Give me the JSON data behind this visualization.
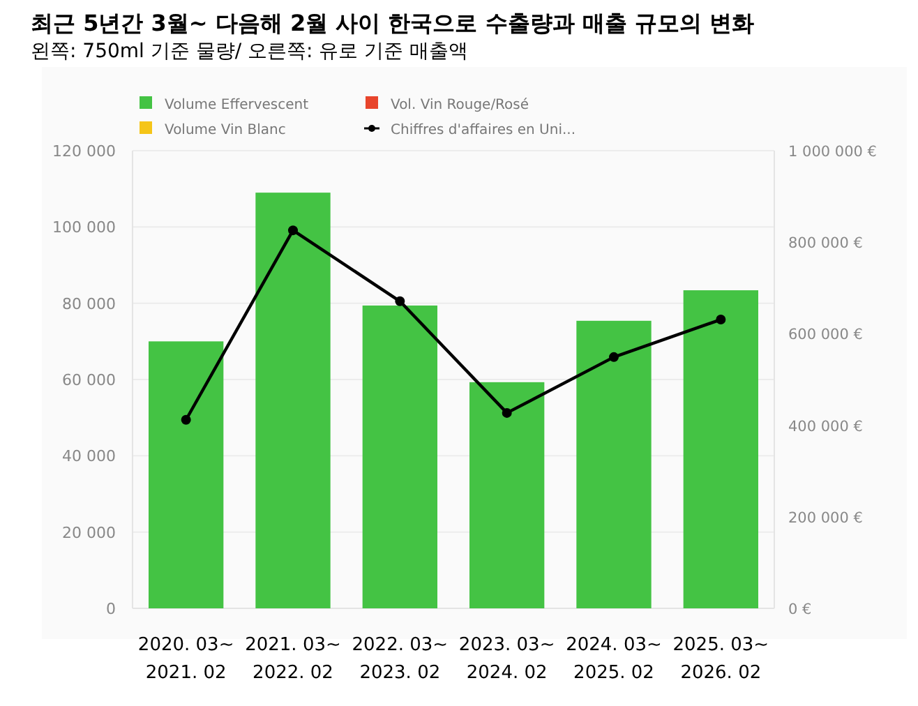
{
  "chart_data": {
    "type": "bar",
    "title": "최근 5년간 3월~ 다음해 2월 사이 한국으로 수출량과 매출 규모의 변화",
    "subtitle": "왼쪽: 750ml 기준 물량/ 오른쪽: 유로 기준 매출액",
    "categories": [
      "2020. 03~\n2021. 02",
      "2021. 03~\n2022. 02",
      "2022. 03~\n2023. 02",
      "2023. 03~\n2024. 02",
      "2024. 03~\n2025. 02",
      "2025. 03~\n2026. 02"
    ],
    "series": [
      {
        "name": "Volume Effervescent",
        "color": "#44c344",
        "values": [
          70000,
          109000,
          79400,
          59300,
          75400,
          83400
        ]
      },
      {
        "name": "Vol. Vin Rouge/Rosé",
        "color": "#e8452c",
        "values": [
          null,
          null,
          null,
          null,
          null,
          null
        ]
      },
      {
        "name": "Volume Vin Blanc",
        "color": "#f5c518",
        "values": [
          null,
          null,
          null,
          null,
          null,
          null
        ]
      },
      {
        "name": "Chiffres d'affaires en Uni...",
        "color": "#000000",
        "type": "line",
        "axis": "y2",
        "marker": "circle",
        "values": [
          412000,
          826000,
          671000,
          427000,
          549000,
          631000
        ]
      }
    ],
    "ylim": [
      0,
      120000
    ],
    "yticks": [
      0,
      {
        "value": 20000,
        "label": "20 000"
      },
      {
        "value": 40000,
        "label": "40 000"
      },
      {
        "value": 60000,
        "label": "60 000"
      },
      {
        "value": 80000,
        "label": "80 000"
      },
      {
        "value": 100000,
        "label": "100 000"
      },
      {
        "value": 120000,
        "label": "120 000"
      }
    ],
    "y2lim": [
      0,
      1000000
    ],
    "y2ticks": [
      {
        "value": 0,
        "label": "0 €"
      },
      {
        "value": 200000,
        "label": "200 000 €"
      },
      {
        "value": 400000,
        "label": "400 000 €"
      },
      {
        "value": 600000,
        "label": "600 000 €"
      },
      {
        "value": 800000,
        "label": "800 000 €"
      },
      {
        "value": 1000000,
        "label": "1 000 000 €"
      }
    ],
    "grid": "y",
    "legend": "top"
  }
}
